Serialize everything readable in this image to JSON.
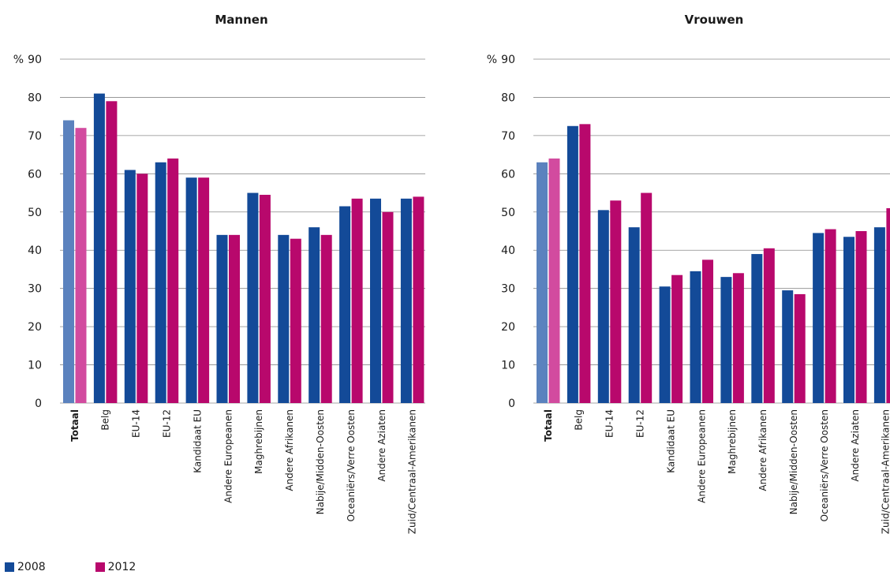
{
  "chart_data": [
    {
      "type": "bar",
      "title": "Mannen",
      "ylabel": "%",
      "ylim": [
        0,
        90
      ],
      "yticks": [
        0,
        10,
        20,
        30,
        40,
        50,
        60,
        70,
        80,
        90
      ],
      "grid": true,
      "categories": [
        "Totaal",
        "Belg",
        "EU-14",
        "EU-12",
        "Kandidaat EU",
        "Andere Europeanen",
        "Maghrebijnen",
        "Andere Afrikanen",
        "Nabije/Midden-Oosten",
        "Oceaniërs/Verre Oosten",
        "Andere Aziaten",
        "Zuid/Centraal-Amerikanen"
      ],
      "series": [
        {
          "name": "2008",
          "values": [
            74,
            81,
            61,
            63,
            59,
            44,
            55,
            44,
            46,
            51.5,
            53.5,
            53.5
          ]
        },
        {
          "name": "2012",
          "values": [
            72,
            79,
            60,
            64,
            59,
            44,
            54.5,
            43,
            44,
            53.5,
            50,
            54
          ]
        }
      ]
    },
    {
      "type": "bar",
      "title": "Vrouwen",
      "ylabel": "%",
      "ylim": [
        0,
        90
      ],
      "yticks": [
        0,
        10,
        20,
        30,
        40,
        50,
        60,
        70,
        80,
        90
      ],
      "grid": true,
      "categories": [
        "Totaal",
        "Belg",
        "EU-14",
        "EU-12",
        "Kandidaat EU",
        "Andere Europeanen",
        "Maghrebijnen",
        "Andere Afrikanen",
        "Nabije/Midden-Oosten",
        "Oceaniërs/Verre Oosten",
        "Andere Aziaten",
        "Zuid/Centraal-Amerikanen"
      ],
      "series": [
        {
          "name": "2008",
          "values": [
            63,
            72.5,
            50.5,
            46,
            30.5,
            34.5,
            33,
            39,
            29.5,
            44.5,
            43.5,
            46
          ]
        },
        {
          "name": "2012",
          "values": [
            64,
            73,
            53,
            55,
            33.5,
            37.5,
            34,
            40.5,
            28.5,
            45.5,
            45,
            51
          ]
        }
      ]
    }
  ],
  "legend": {
    "placement": "bottom-left",
    "items": [
      {
        "label": "2008",
        "color": "#134a98"
      },
      {
        "label": "2012",
        "color": "#b8086c"
      }
    ]
  },
  "colors": {
    "s2008": "#134a98",
    "s2012": "#b8086c",
    "totaal2008": "#5b82be",
    "totaal2012": "#d24b9f",
    "grid": "#8a8a8a"
  },
  "axis_prefix": "%"
}
